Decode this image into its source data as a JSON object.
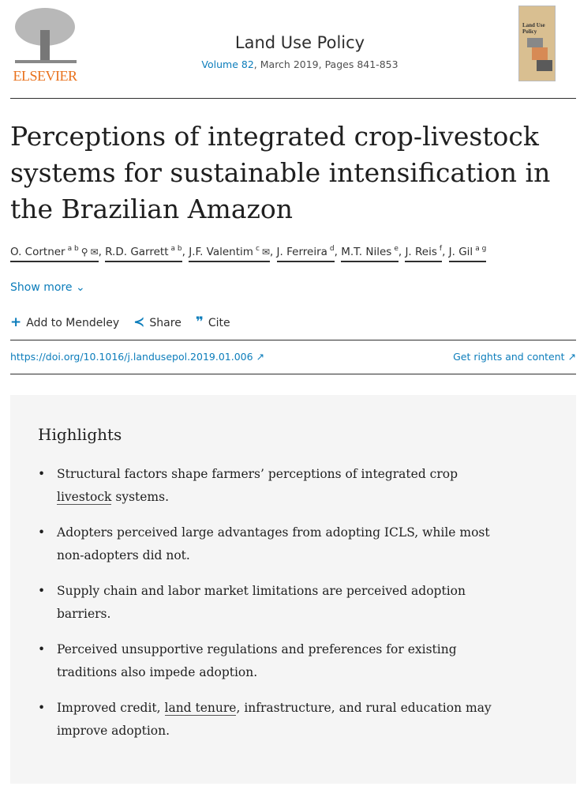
{
  "publisher": {
    "name": "ELSEVIER",
    "brand_color": "#e9711c"
  },
  "journal": {
    "title": "Land Use Policy",
    "volume_link": "Volume 82",
    "details": ", March 2019, Pages 841-853",
    "cover_title": "Land Use Policy"
  },
  "article": {
    "title": "Perceptions of integrated crop-livestock systems for sustainable intensification in the Brazilian Amazon"
  },
  "authors": [
    {
      "name": "O. Cortner",
      "sup": "a b",
      "icons": [
        "person-icon",
        "envelope-icon"
      ]
    },
    {
      "name": "R.D. Garrett",
      "sup": "a b"
    },
    {
      "name": "J.F. Valentim",
      "sup": "c",
      "icons": [
        "envelope-icon"
      ]
    },
    {
      "name": "J. Ferreira",
      "sup": "d"
    },
    {
      "name": "M.T. Niles",
      "sup": "e"
    },
    {
      "name": "J. Reis",
      "sup": "f"
    },
    {
      "name": "J. Gil",
      "sup": "a g"
    }
  ],
  "show_more": "Show more",
  "actions": {
    "mendeley": "Add to Mendeley",
    "share": "Share",
    "cite": "Cite"
  },
  "doi": "https://doi.org/10.1016/j.landusepol.2019.01.006 ↗",
  "rights": "Get rights and content ↗",
  "highlights": {
    "heading": "Highlights",
    "items": [
      {
        "before": "Structural factors shape farmers’ perceptions of integrated crop ",
        "link": "livestock",
        "after": " systems."
      },
      {
        "before": "Adopters perceived large advantages from adopting ICLS, while most non-adopters did not.",
        "link": "",
        "after": ""
      },
      {
        "before": "Supply chain and labor market limitations are perceived adoption barriers.",
        "link": "",
        "after": ""
      },
      {
        "before": "Perceived unsupportive regulations and preferences for existing traditions also impede adoption.",
        "link": "",
        "after": ""
      },
      {
        "before": "Improved credit, ",
        "link": "land tenure",
        "after": ", infrastructure, and rural education may improve adoption."
      }
    ]
  }
}
